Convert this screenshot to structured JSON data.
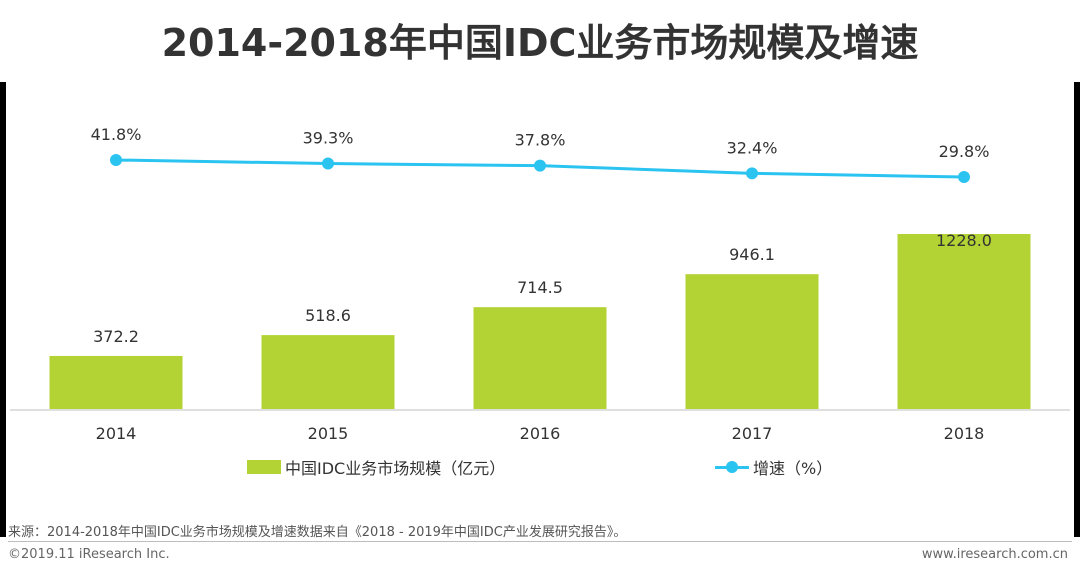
{
  "title": "2014-2018年中国IDC业务市场规模及增速",
  "chart_data": {
    "type": "bar",
    "categories": [
      "2014",
      "2015",
      "2016",
      "2017",
      "2018"
    ],
    "series": [
      {
        "name": "中国IDC业务市场规模（亿元）",
        "type": "bar",
        "values": [
          372.2,
          518.6,
          714.5,
          946.1,
          1228.0
        ],
        "labels": [
          "372.2",
          "518.6",
          "714.5",
          "946.1",
          "1228.0"
        ],
        "color": "#b3d334"
      },
      {
        "name": "增速（%）",
        "type": "line",
        "values": [
          41.8,
          39.3,
          37.8,
          32.4,
          29.8
        ],
        "labels": [
          "41.8%",
          "39.3%",
          "37.8%",
          "32.4%",
          "29.8%"
        ],
        "color": "#2bc4f0"
      }
    ],
    "legend_position": "bottom"
  },
  "legend": {
    "bar_label": "中国IDC业务市场规模（亿元）",
    "line_label": "增速（%）"
  },
  "footer": {
    "source": "来源：2014-2018年中国IDC业务市场规模及增速数据来自《2018 - 2019年中国IDC产业发展研究报告》。",
    "copyright": "©2019.11 iResearch Inc.",
    "website": "www.iresearch.com.cn"
  }
}
